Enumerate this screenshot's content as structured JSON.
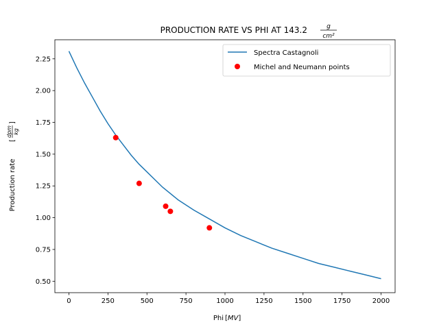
{
  "chart_data": {
    "type": "line",
    "title": "PRODUCTION RATE VS PHI AT 143.2",
    "title_unit": {
      "numerator": "g",
      "denominator": "cm²"
    },
    "xlabel": "Phi",
    "xlabel_unit": "MV",
    "ylabel": "Production rate",
    "ylabel_unit": {
      "numerator": "dpm",
      "denominator": "kg"
    },
    "xlim": [
      -90,
      2090
    ],
    "ylim": [
      0.41,
      2.4
    ],
    "xticks": [
      0,
      250,
      500,
      750,
      1000,
      1250,
      1500,
      1750,
      2000
    ],
    "yticks": [
      0.5,
      0.75,
      1.0,
      1.25,
      1.5,
      1.75,
      2.0,
      2.25
    ],
    "xtick_labels": [
      "0",
      "250",
      "500",
      "750",
      "1000",
      "1250",
      "1500",
      "1750",
      "2000"
    ],
    "ytick_labels": [
      "0.50",
      "0.75",
      "1.00",
      "1.25",
      "1.50",
      "1.75",
      "2.00",
      "2.25"
    ],
    "grid": false,
    "legend_position": "top-right",
    "series": [
      {
        "name": "Spectra Castagnoli",
        "kind": "line",
        "color": "#1f77b4",
        "x": [
          0,
          50,
          100,
          150,
          200,
          250,
          300,
          350,
          400,
          450,
          500,
          600,
          700,
          800,
          900,
          1000,
          1100,
          1200,
          1300,
          1400,
          1500,
          1600,
          1700,
          1800,
          1900,
          2000
        ],
        "y": [
          2.31,
          2.18,
          2.06,
          1.95,
          1.84,
          1.74,
          1.65,
          1.57,
          1.49,
          1.42,
          1.36,
          1.24,
          1.14,
          1.06,
          0.99,
          0.92,
          0.86,
          0.81,
          0.76,
          0.72,
          0.68,
          0.64,
          0.61,
          0.58,
          0.55,
          0.52
        ]
      },
      {
        "name": "Michel and Neumann points",
        "kind": "scatter",
        "color": "#ff0000",
        "x": [
          300,
          450,
          620,
          650,
          900
        ],
        "y": [
          1.63,
          1.27,
          1.09,
          1.05,
          0.92
        ]
      }
    ]
  }
}
